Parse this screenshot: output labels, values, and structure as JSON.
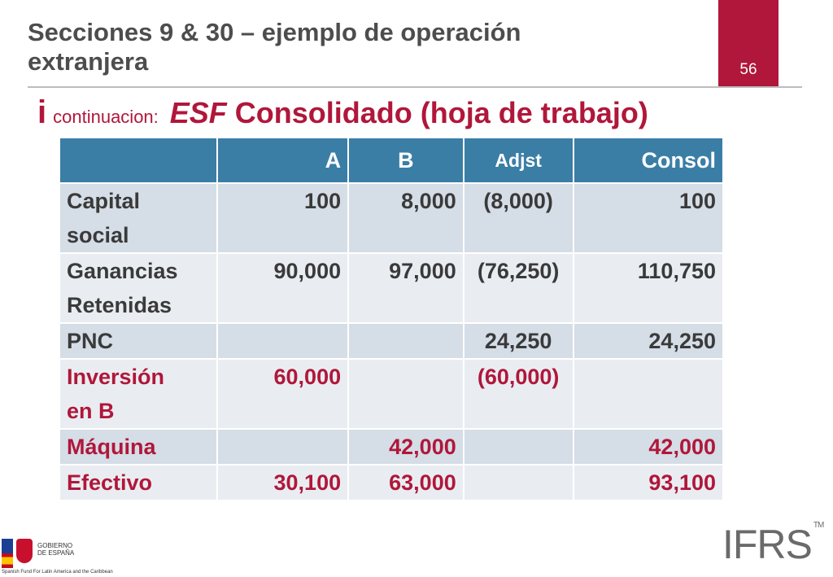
{
  "header": {
    "title_line1": "Secciones 9 & 30 – ejemplo de operación",
    "title_line2": "extranjera",
    "page_number": "56",
    "subtitle_bullet": "i",
    "subtitle_small": "continuacion:",
    "subtitle_italic": "ESF",
    "subtitle_main": " Consolidado (hoja de trabajo)"
  },
  "table": {
    "columns": [
      "",
      "A",
      "B",
      "Adjst",
      "Consol"
    ],
    "rows": [
      {
        "label_1": "Capital",
        "label_2": "social",
        "a": "100",
        "b": "8,000",
        "adjst": "(8,000)",
        "consol": "100"
      },
      {
        "label_1": "Ganancias",
        "label_2": "Retenidas",
        "a": "90,000",
        "b": "97,000",
        "adjst": "(76,250)",
        "consol": "110,750"
      },
      {
        "label_1": "PNC",
        "label_2": "",
        "a": "",
        "b": "",
        "adjst": "24,250",
        "consol": "24,250"
      },
      {
        "label_1": "Inversión",
        "label_2": "en B",
        "a": "60,000",
        "b": "",
        "adjst": "(60,000)",
        "consol": ""
      },
      {
        "label_1": "Máquina",
        "label_2": "",
        "a": "",
        "b": "42,000",
        "adjst": "",
        "consol": "42,000"
      },
      {
        "label_1": "Efectivo",
        "label_2": "",
        "a": "30,100",
        "b": "63,000",
        "adjst": "",
        "consol": "93,100"
      }
    ]
  },
  "footer": {
    "ifrs_logo": "IFRS",
    "ifrs_tm": "TM",
    "gob_text_1": "GOBIERNO",
    "gob_text_2": "DE ESPAÑA",
    "fund_text": "Spanish Fund For Latin America and the Caribbean"
  },
  "colors": {
    "accent": "#b0173a",
    "header_blue": "#3a7ea6",
    "row_dark": "#d5dde6",
    "row_light": "#e9edf2"
  }
}
